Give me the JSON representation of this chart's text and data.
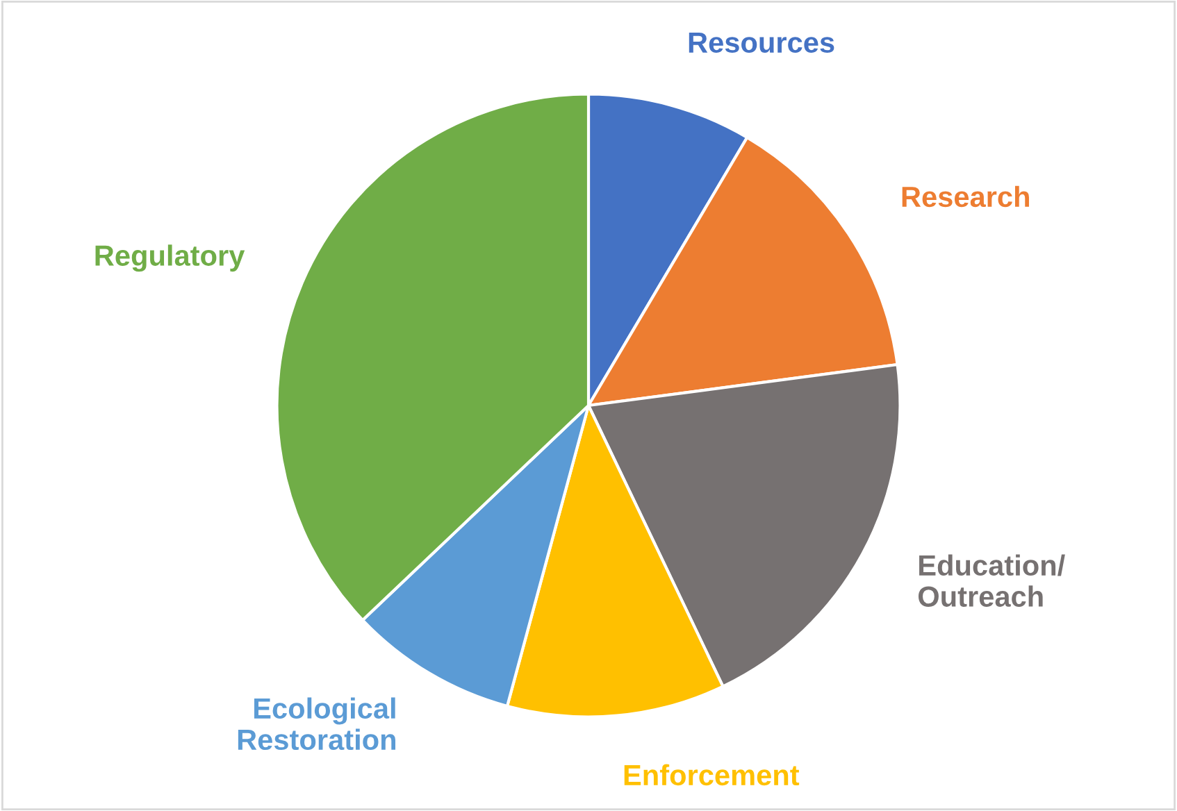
{
  "chart_data": {
    "type": "pie",
    "categories": [
      "Resources",
      "Research",
      "Education/\nOutreach",
      "Enforcement",
      "Ecological\nRestoration",
      "Regulatory"
    ],
    "values": [
      8.5,
      14.4,
      20.0,
      11.3,
      8.7,
      37.1
    ],
    "colors": [
      "#4472c4",
      "#ed7d31",
      "#767171",
      "#ffc000",
      "#5b9bd5",
      "#70ad47"
    ],
    "legend": false
  }
}
